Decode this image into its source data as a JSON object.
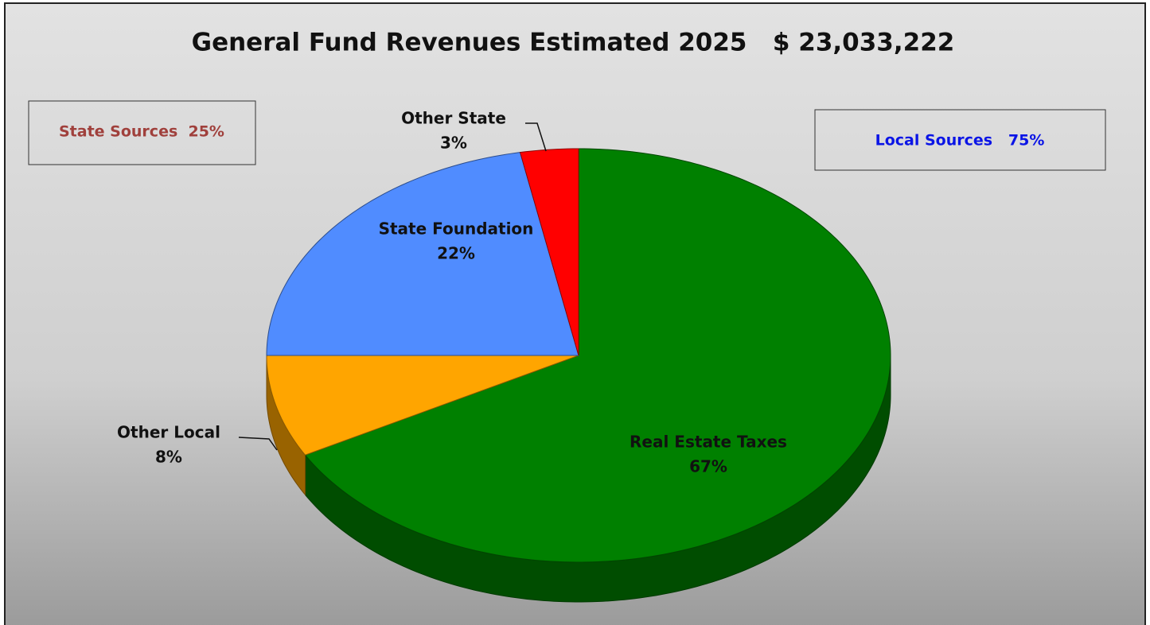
{
  "chart_data": {
    "type": "pie",
    "title": "General Fund Revenues Estimated 2025   $ 23,033,222",
    "categories": [
      "Real Estate Taxes",
      "Other Local",
      "State Foundation",
      "Other State"
    ],
    "values": [
      67,
      8,
      22,
      3
    ],
    "value_labels": [
      "67%",
      "8%",
      "22%",
      "3%"
    ],
    "colors": [
      "#008000",
      "#ffa500",
      "#508cff",
      "#ff0000"
    ],
    "annotations": [
      {
        "text": "State Sources  25%",
        "color": "#a0403c"
      },
      {
        "text": "Local Sources   75%",
        "color": "#0a14e6"
      }
    ]
  }
}
